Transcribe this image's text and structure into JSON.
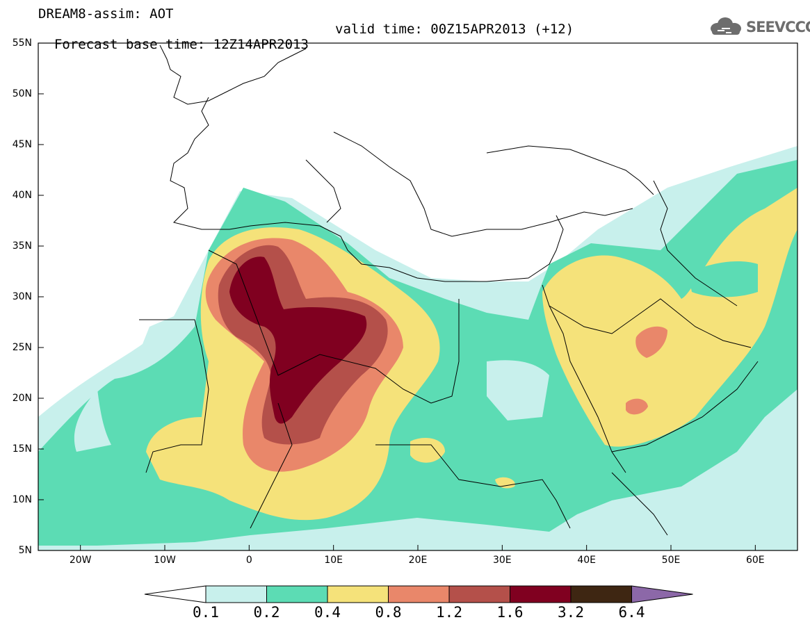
{
  "title": {
    "line1": "DREAM8-assim: AOT",
    "base_time": "Forecast base time: 12Z14APR2013",
    "valid_time": "valid time: 00Z15APR2013 (+12)"
  },
  "logo": {
    "text": "SEEVCCC",
    "icon": "cloud-logo-icon",
    "color": "#6d6d6d"
  },
  "map": {
    "variable": "AOT",
    "extent": {
      "lon_min": -25,
      "lon_max": 65,
      "lat_min": 5,
      "lat_max": 55
    },
    "lat_ticks": [
      "55N",
      "50N",
      "45N",
      "40N",
      "35N",
      "30N",
      "25N",
      "20N",
      "15N",
      "10N",
      "5N"
    ],
    "lon_ticks": [
      "20W",
      "10W",
      "0",
      "10E",
      "20E",
      "30E",
      "40E",
      "50E",
      "60E"
    ]
  },
  "legend": {
    "levels": [
      "0.1",
      "0.2",
      "0.4",
      "0.8",
      "1.2",
      "1.6",
      "3.2",
      "6.4"
    ],
    "colors": [
      "#ffffff",
      "#c8f0ec",
      "#5cdcb4",
      "#f5e27a",
      "#e9876a",
      "#b4504a",
      "#800020",
      "#3e2612",
      "#8c68a8"
    ]
  }
}
